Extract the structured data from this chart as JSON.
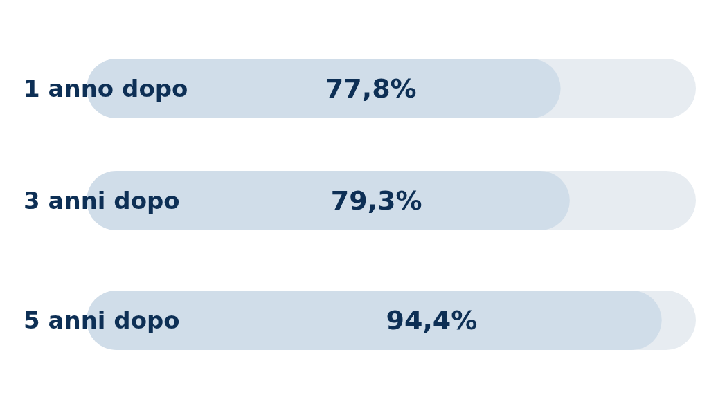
{
  "chart_data": {
    "type": "bar",
    "orientation": "horizontal",
    "categories": [
      "1 anno dopo",
      "3 anni dopo",
      "5 anni dopo"
    ],
    "values": [
      77.8,
      79.3,
      94.4
    ],
    "value_labels": [
      "77,8%",
      "79,3%",
      "94,4%"
    ],
    "color": "#d0dde9",
    "xlim": [
      0,
      100
    ],
    "tick_labels": "y"
  }
}
